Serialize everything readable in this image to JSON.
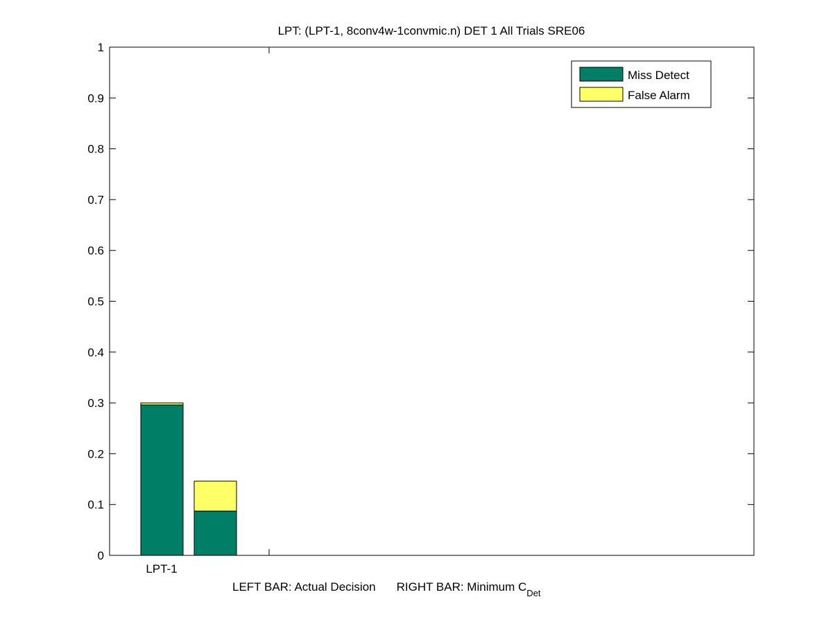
{
  "chart_data": {
    "type": "bar",
    "stacked": true,
    "title": "LPT: (LPT-1, 8conv4w-1convmic.n) DET 1 All Trials SRE06",
    "categories": [
      "LPT-1"
    ],
    "bars": [
      {
        "category": "LPT-1",
        "label": "Actual Decision",
        "miss_detect": 0.296,
        "false_alarm": 0.004
      },
      {
        "category": "LPT-1",
        "label": "Minimum CDet",
        "miss_detect": 0.087,
        "false_alarm": 0.059
      }
    ],
    "series": [
      {
        "name": "Miss Detect",
        "color": "#007F66"
      },
      {
        "name": "False Alarm",
        "color": "#FFFF66"
      }
    ],
    "xlabel_left": "LEFT BAR: Actual Decision",
    "xlabel_right": "RIGHT BAR: Minimum C",
    "xlabel_sub": "Det",
    "ylim": [
      0,
      1
    ],
    "yticks": [
      "0",
      "0.1",
      "0.2",
      "0.3",
      "0.4",
      "0.5",
      "0.6",
      "0.7",
      "0.8",
      "0.9",
      "1"
    ],
    "grid": false,
    "legend_position": "top-right"
  }
}
